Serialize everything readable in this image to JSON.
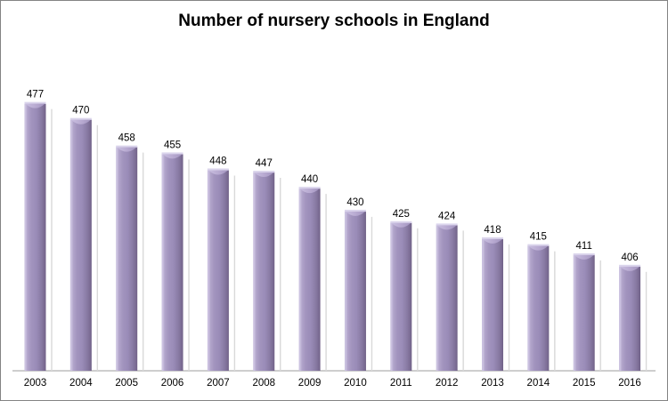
{
  "frame": {
    "background": "#ffffff",
    "border_color": "#848484"
  },
  "chart_data": {
    "type": "bar",
    "title": "Number of nursery schools in England",
    "categories": [
      "2003",
      "2004",
      "2005",
      "2006",
      "2007",
      "2008",
      "2009",
      "2010",
      "2011",
      "2012",
      "2013",
      "2014",
      "2015",
      "2016"
    ],
    "values": [
      477,
      470,
      458,
      455,
      448,
      447,
      440,
      430,
      425,
      424,
      418,
      415,
      411,
      406
    ],
    "xlabel": "",
    "ylabel": "",
    "ylim": [
      360,
      480
    ],
    "grid": false,
    "legend": "none",
    "data_labels_visible": true,
    "y_axis_visible": false,
    "colors": {
      "bar_highlight": "#cdc4e2",
      "bar_mid": "#9a8cb8",
      "bar_dark": "#6f6085",
      "cap_band": "#dbd5ec",
      "cap_flap": "#b9abd2",
      "shadow": "#d9d9d9",
      "axis_line": "#9e9e9e",
      "label_color": "#000000"
    }
  }
}
